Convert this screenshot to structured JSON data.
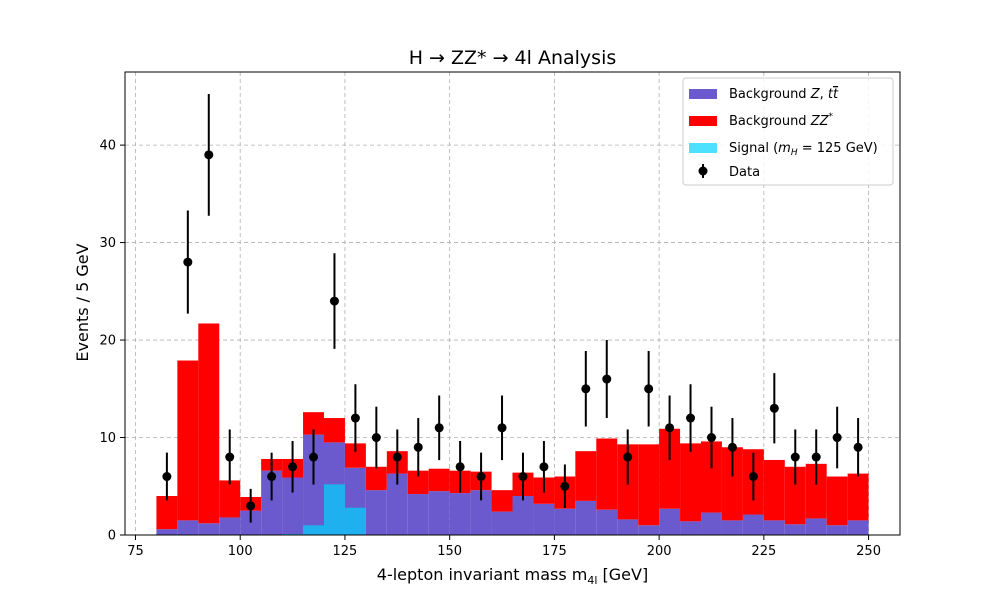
{
  "chart_data": {
    "type": "bar",
    "title": "H → ZZ* → 4l Analysis",
    "xlabel": "4-lepton invariant mass m",
    "xlabel_sub": "4l",
    "xlabel_unit": " [GeV]",
    "ylabel": "Events / 5 GeV",
    "xlim": [
      72.5,
      257.5
    ],
    "ylim": [
      0,
      47.5
    ],
    "xticks": [
      75,
      100,
      125,
      150,
      175,
      200,
      225,
      250
    ],
    "yticks": [
      0,
      10,
      20,
      30,
      40
    ],
    "grid": true,
    "legend_position": "top-right",
    "bin_edges": [
      80,
      85,
      90,
      95,
      100,
      105,
      110,
      115,
      120,
      125,
      130,
      135,
      140,
      145,
      150,
      155,
      160,
      165,
      170,
      175,
      180,
      185,
      190,
      195,
      200,
      205,
      210,
      215,
      220,
      225,
      230,
      235,
      240,
      245,
      250
    ],
    "series": [
      {
        "name": "Background $Z, t\\bar{t}$",
        "legend_label": "Background Z, tt̄",
        "color": "#6a5acd",
        "values": [
          0.6,
          1.5,
          1.2,
          1.8,
          2.5,
          6.6,
          5.9,
          10.3,
          9.5,
          6.9,
          4.6,
          6.3,
          4.2,
          4.5,
          4.3,
          4.6,
          2.4,
          4.0,
          3.2,
          2.7,
          3.5,
          2.6,
          1.6,
          1.0,
          2.7,
          1.4,
          2.3,
          1.5,
          2.1,
          1.5,
          1.1,
          1.7,
          1.0,
          1.5
        ]
      },
      {
        "name": "Background $ZZ^*$",
        "legend_label": "Background ZZ*",
        "color": "#ff0000",
        "values": [
          3.4,
          16.4,
          20.5,
          3.8,
          1.4,
          1.2,
          1.9,
          2.3,
          2.5,
          2.5,
          2.4,
          2.3,
          2.4,
          2.3,
          2.3,
          1.9,
          2.2,
          2.4,
          2.7,
          3.3,
          5.1,
          7.3,
          7.7,
          8.3,
          8.2,
          8.0,
          7.3,
          7.5,
          6.7,
          6.2,
          5.9,
          5.6,
          5.0,
          4.8
        ]
      },
      {
        "name": "Signal ($m_H$ = 125 GeV)",
        "legend_label": "Signal (mH = 125 GeV)",
        "color": "#00d4ff",
        "alpha": 0.7,
        "values": [
          0,
          0,
          0,
          0,
          0,
          0,
          0.1,
          1.0,
          5.2,
          2.8,
          0,
          0,
          0,
          0,
          0,
          0,
          0,
          0,
          0,
          0,
          0,
          0,
          0,
          0,
          0,
          0,
          0,
          0,
          0,
          0,
          0,
          0,
          0,
          0
        ]
      }
    ],
    "data_points": {
      "name": "Data",
      "color": "#000000",
      "x": [
        82.5,
        87.5,
        92.5,
        97.5,
        102.5,
        107.5,
        112.5,
        117.5,
        122.5,
        127.5,
        132.5,
        137.5,
        142.5,
        147.5,
        152.5,
        157.5,
        162.5,
        167.5,
        172.5,
        177.5,
        182.5,
        187.5,
        192.5,
        197.5,
        202.5,
        207.5,
        212.5,
        217.5,
        222.5,
        227.5,
        232.5,
        237.5,
        242.5,
        247.5
      ],
      "y": [
        6,
        28,
        39,
        8,
        3,
        6,
        7,
        8,
        24,
        12,
        10,
        8,
        9,
        11,
        7,
        6,
        11,
        6,
        7,
        5,
        15,
        16,
        8,
        15,
        11,
        12,
        10,
        9,
        6,
        13,
        8,
        8,
        10,
        9
      ]
    }
  }
}
